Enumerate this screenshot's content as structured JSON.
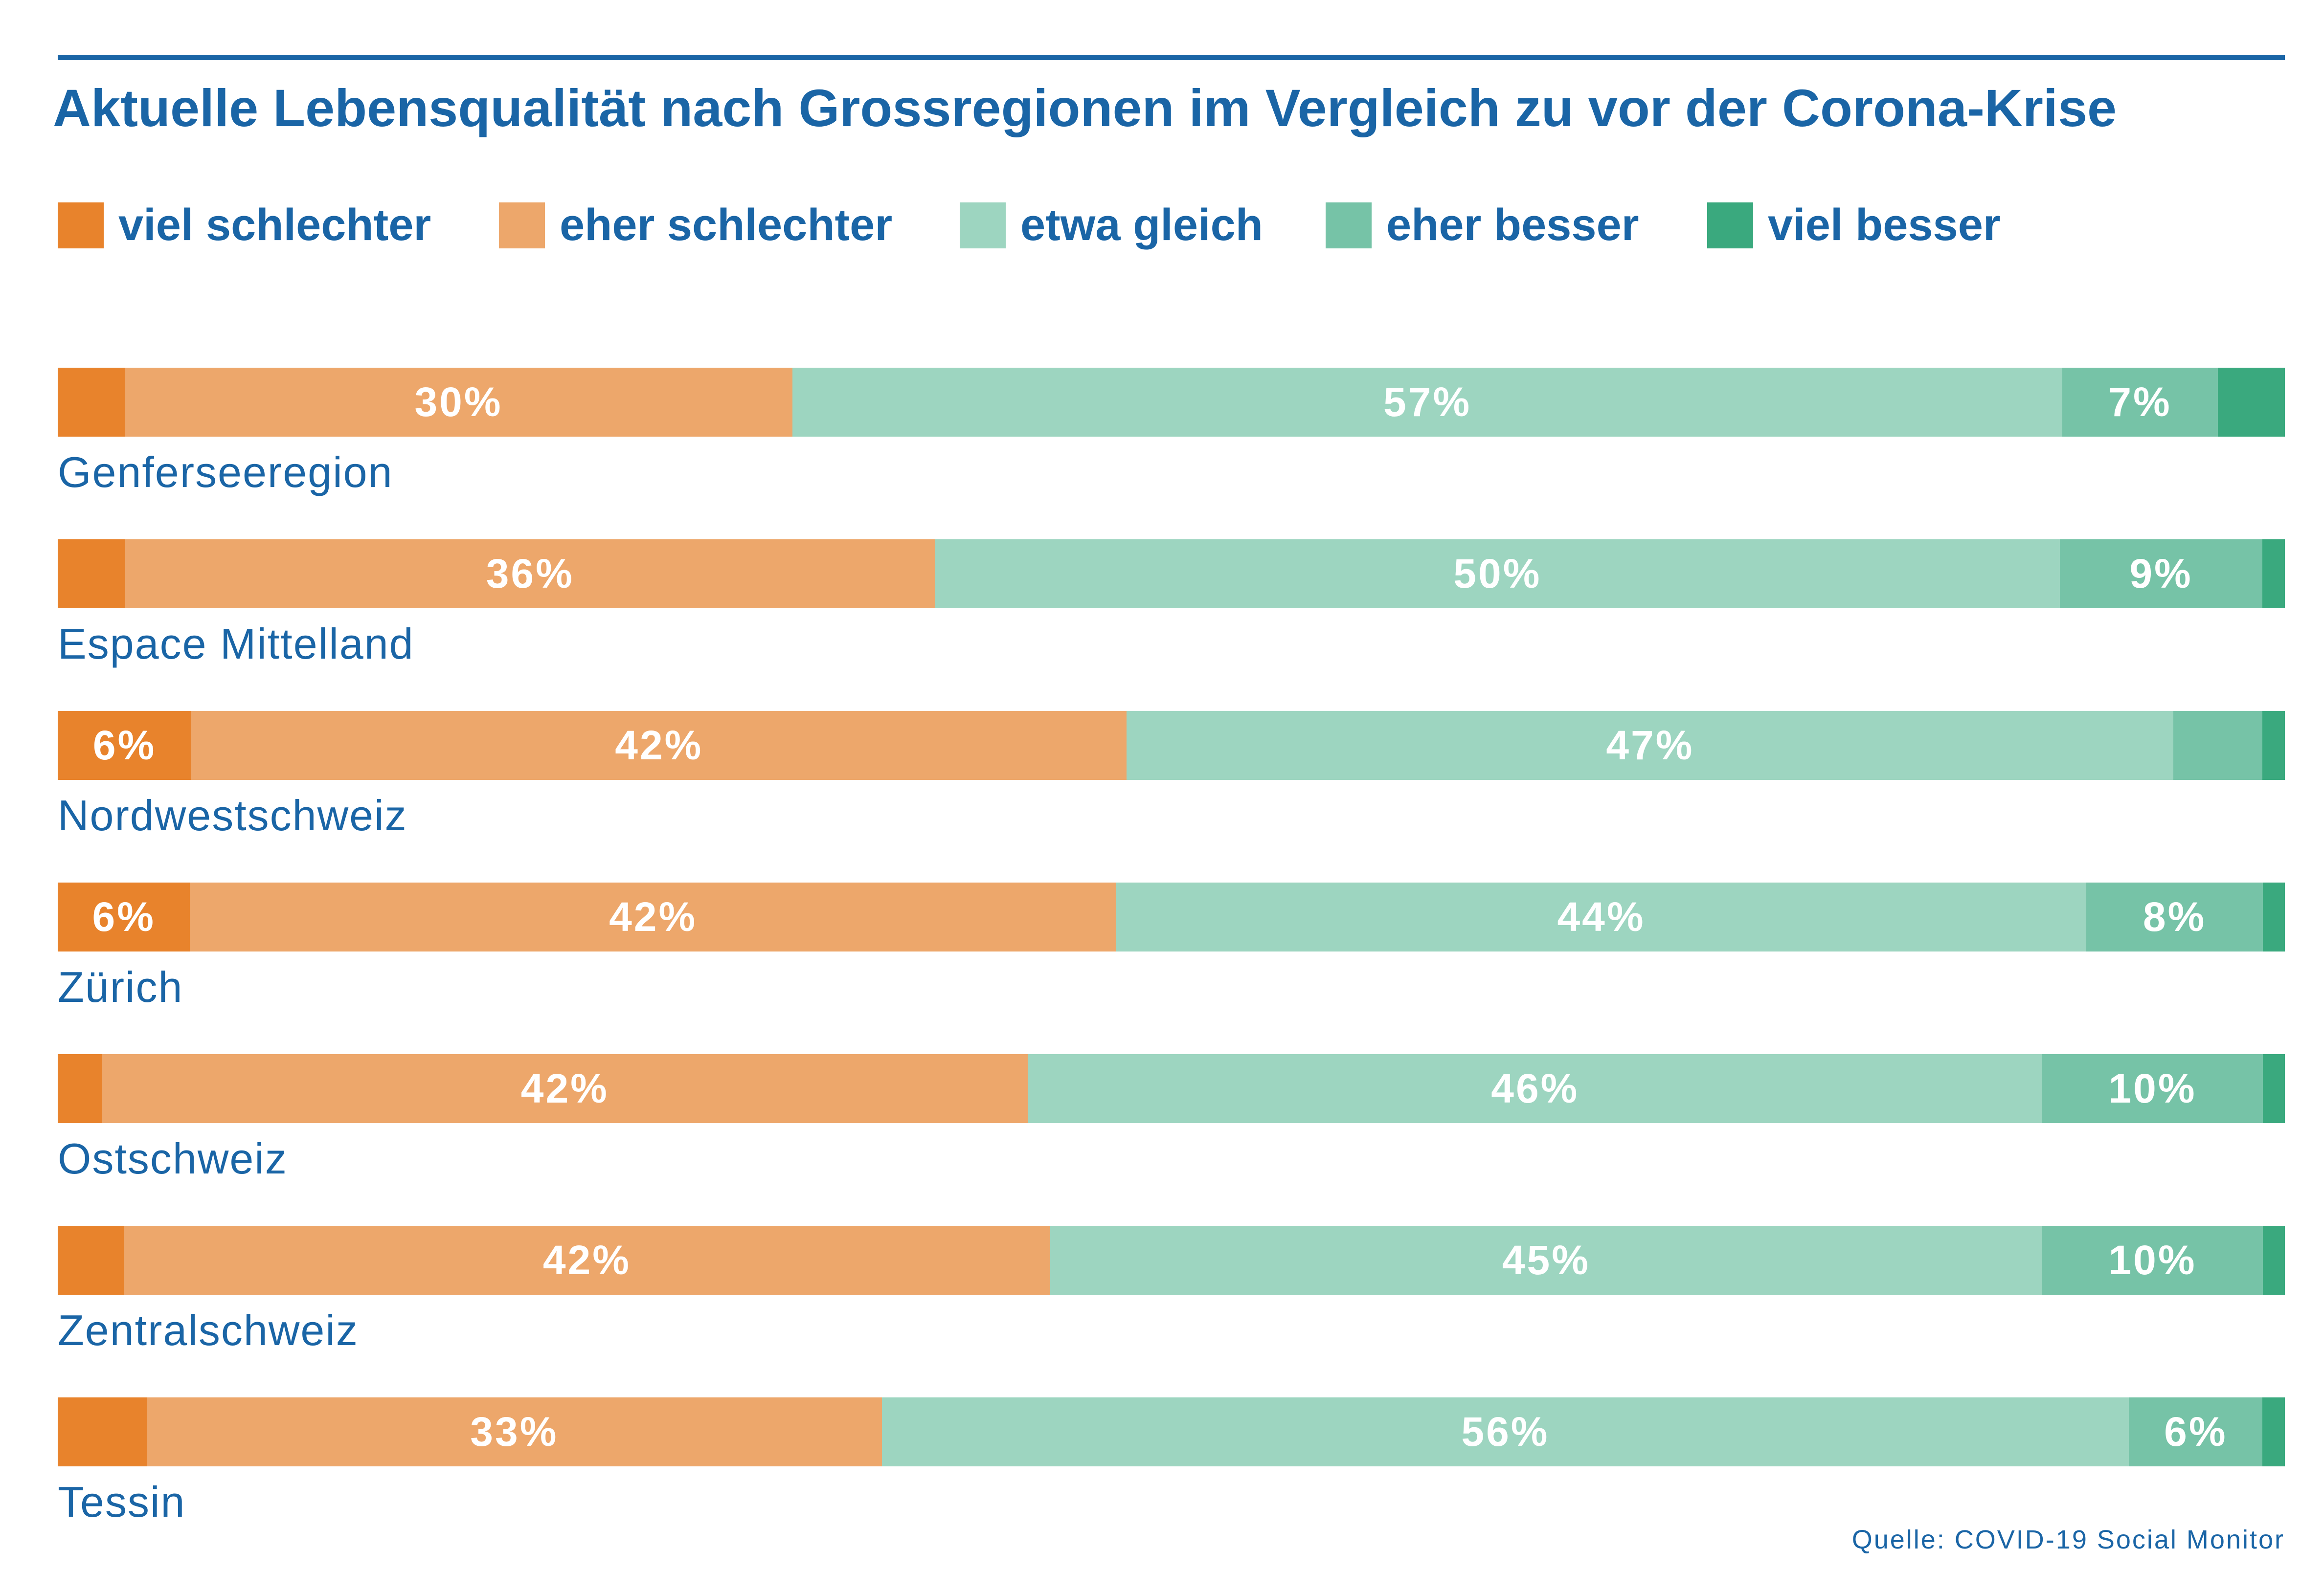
{
  "chart_data": {
    "type": "bar",
    "orientation": "horizontal",
    "stacked": true,
    "title": "Aktuelle Lebensqualität nach Grossregionen im Vergleich zu vor der Corona-Krise",
    "source": "Quelle: COVID-19 Social Monitor",
    "legend_position": "top-left",
    "grid": false,
    "categories": [
      "Genferseeregion",
      "Espace Mittelland",
      "Nordwestschweiz",
      "Zürich",
      "Ostschweiz",
      "Zentralschweiz",
      "Tessin"
    ],
    "series": [
      {
        "name": "viel schlechter",
        "color": "#e8832c",
        "values": [
          3,
          3,
          6,
          6,
          2,
          3,
          4
        ]
      },
      {
        "name": "eher schlechter",
        "color": "#eda76b",
        "values": [
          30,
          36,
          42,
          42,
          42,
          42,
          33
        ]
      },
      {
        "name": "etwa gleich",
        "color": "#9dd5c0",
        "values": [
          57,
          50,
          47,
          44,
          46,
          45,
          56
        ]
      },
      {
        "name": "eher besser",
        "color": "#76c3a7",
        "values": [
          7,
          9,
          4,
          8,
          10,
          10,
          6
        ]
      },
      {
        "name": "viel besser",
        "color": "#3aa97e",
        "values": [
          3,
          1,
          1,
          1,
          1,
          1,
          1
        ]
      }
    ],
    "data_labels": [
      [
        "",
        "30%",
        "57%",
        "7%",
        ""
      ],
      [
        "",
        "36%",
        "50%",
        "9%",
        ""
      ],
      [
        "6%",
        "42%",
        "47%",
        "",
        ""
      ],
      [
        "6%",
        "42%",
        "44%",
        "8%",
        ""
      ],
      [
        "",
        "42%",
        "46%",
        "10%",
        ""
      ],
      [
        "",
        "42%",
        "45%",
        "10%",
        ""
      ],
      [
        "",
        "33%",
        "56%",
        "6%",
        ""
      ]
    ],
    "xlim": [
      0,
      100
    ]
  }
}
